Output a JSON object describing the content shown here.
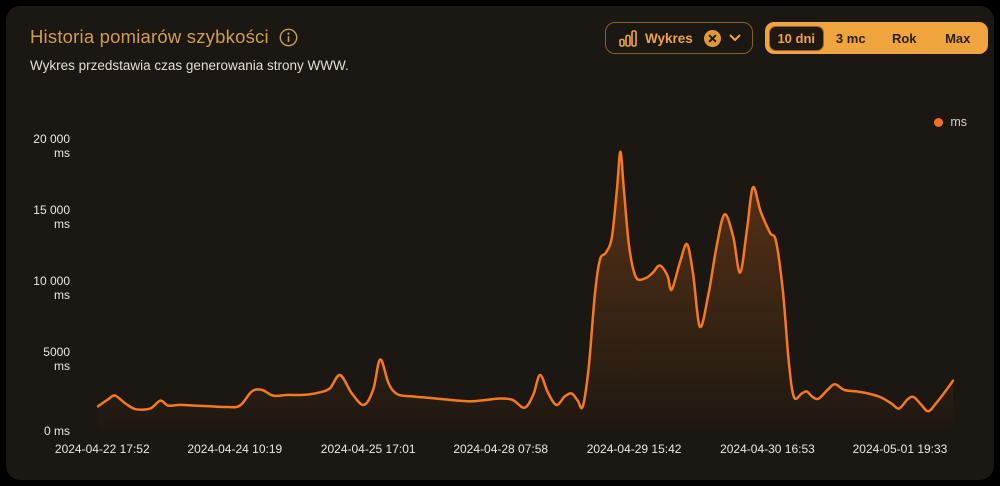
{
  "header": {
    "title": "Historia pomiarów szybkości",
    "subtitle": "Wykres przedstawia czas generowania strony WWW."
  },
  "controls": {
    "chart_type": {
      "label": "Wykres",
      "icon": "bar-chart-icon",
      "clearable": true
    },
    "ranges": [
      {
        "label": "10 dni",
        "selected": true
      },
      {
        "label": "3 mc",
        "selected": false
      },
      {
        "label": "Rok",
        "selected": false
      },
      {
        "label": "Max",
        "selected": false
      }
    ]
  },
  "legend": {
    "label": "ms"
  },
  "colors": {
    "accent": "#f0a43e",
    "line": "#f8791b",
    "legend_dot": "#f8711a",
    "title": "#d39e49",
    "card_bg": "#1b1712"
  },
  "chart_data": {
    "type": "area",
    "title": "Historia pomiarów szybkości",
    "ylabel": "ms",
    "ylim": [
      0,
      20000
    ],
    "grid": false,
    "legend_position": "top-right",
    "series_name": "ms",
    "y_ticks": [
      {
        "value": 20000,
        "lines": [
          "20 000",
          "ms"
        ]
      },
      {
        "value": 15000,
        "lines": [
          "15 000",
          "ms"
        ]
      },
      {
        "value": 10000,
        "lines": [
          "10 000",
          "ms"
        ]
      },
      {
        "value": 5000,
        "lines": [
          "5000",
          "ms"
        ]
      },
      {
        "value": 0,
        "lines": [
          "0 ms"
        ]
      }
    ],
    "x_ticks": [
      {
        "label": "2024-04-22 17:52",
        "t": 0.5
      },
      {
        "label": "2024-04-24 10:19",
        "t": 16.0
      },
      {
        "label": "2024-04-25 17:01",
        "t": 31.6
      },
      {
        "label": "2024-04-28 07:58",
        "t": 47.1
      },
      {
        "label": "2024-04-29 15:42",
        "t": 62.7
      },
      {
        "label": "2024-04-30 16:53",
        "t": 78.3
      },
      {
        "label": "2024-05-01 19:33",
        "t": 93.8
      }
    ],
    "points_note": "pairs of [position along time axis in % , response time in ms]",
    "points": [
      [
        0,
        1700
      ],
      [
        1.2,
        2200
      ],
      [
        2,
        2450
      ],
      [
        3.2,
        1900
      ],
      [
        4.4,
        1500
      ],
      [
        6.1,
        1550
      ],
      [
        7.3,
        2100
      ],
      [
        8.2,
        1750
      ],
      [
        9.6,
        1800
      ],
      [
        11.3,
        1750
      ],
      [
        13.1,
        1700
      ],
      [
        15.1,
        1650
      ],
      [
        16.6,
        1750
      ],
      [
        18,
        2750
      ],
      [
        19.2,
        2850
      ],
      [
        20.5,
        2450
      ],
      [
        22.2,
        2500
      ],
      [
        24,
        2500
      ],
      [
        25.7,
        2650
      ],
      [
        27.1,
        2950
      ],
      [
        28.3,
        3900
      ],
      [
        29.7,
        2600
      ],
      [
        31.1,
        1800
      ],
      [
        32.2,
        2900
      ],
      [
        33,
        5000
      ],
      [
        34,
        3300
      ],
      [
        35,
        2550
      ],
      [
        36.7,
        2400
      ],
      [
        38.6,
        2300
      ],
      [
        40.4,
        2200
      ],
      [
        42.1,
        2100
      ],
      [
        43.7,
        2050
      ],
      [
        45.5,
        2150
      ],
      [
        47,
        2250
      ],
      [
        48.5,
        2150
      ],
      [
        49.9,
        1600
      ],
      [
        50.9,
        2500
      ],
      [
        51.7,
        3900
      ],
      [
        52.6,
        2700
      ],
      [
        53.6,
        1800
      ],
      [
        54.6,
        2400
      ],
      [
        55.4,
        2600
      ],
      [
        56.1,
        2100
      ],
      [
        56.7,
        1700
      ],
      [
        57.4,
        4500
      ],
      [
        58.1,
        9500
      ],
      [
        58.7,
        12000
      ],
      [
        59.4,
        12500
      ],
      [
        60.1,
        13600
      ],
      [
        60.7,
        17000
      ],
      [
        61.1,
        19600
      ],
      [
        61.5,
        17000
      ],
      [
        62.1,
        13000
      ],
      [
        62.9,
        10800
      ],
      [
        64,
        10700
      ],
      [
        64.9,
        11100
      ],
      [
        65.7,
        11600
      ],
      [
        66.6,
        10900
      ],
      [
        67.1,
        9900
      ],
      [
        68.1,
        11900
      ],
      [
        68.9,
        13100
      ],
      [
        69.6,
        11000
      ],
      [
        70.4,
        7300
      ],
      [
        71.4,
        9600
      ],
      [
        72.4,
        13100
      ],
      [
        73.3,
        15200
      ],
      [
        74.3,
        13600
      ],
      [
        75.1,
        11100
      ],
      [
        75.9,
        14100
      ],
      [
        76.6,
        17100
      ],
      [
        77.5,
        15400
      ],
      [
        78.6,
        13900
      ],
      [
        79.3,
        13300
      ],
      [
        80.1,
        9800
      ],
      [
        80.8,
        4800
      ],
      [
        81.4,
        2350
      ],
      [
        82.3,
        2600
      ],
      [
        82.9,
        2750
      ],
      [
        83.6,
        2350
      ],
      [
        84.3,
        2250
      ],
      [
        85.4,
        2900
      ],
      [
        86.2,
        3250
      ],
      [
        87.3,
        2850
      ],
      [
        88.7,
        2750
      ],
      [
        90.1,
        2600
      ],
      [
        91.5,
        2350
      ],
      [
        92.8,
        1900
      ],
      [
        93.7,
        1550
      ],
      [
        94.7,
        2200
      ],
      [
        95.4,
        2350
      ],
      [
        96.3,
        1800
      ],
      [
        97.1,
        1350
      ],
      [
        98,
        1900
      ],
      [
        99.1,
        2750
      ],
      [
        100,
        3500
      ]
    ]
  }
}
